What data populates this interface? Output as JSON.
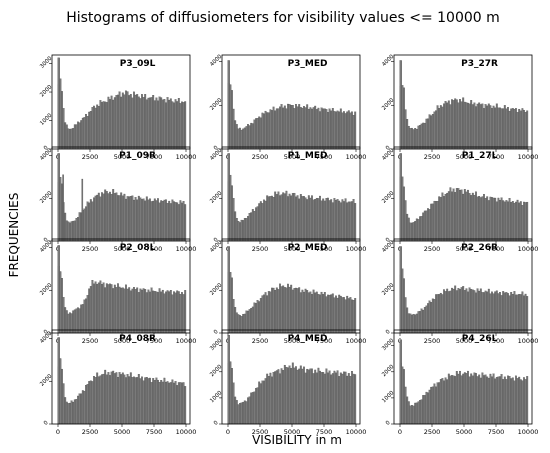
{
  "figure": {
    "title": "Histograms of diffusiometers for visibility values <= 10000 m",
    "xlabel": "VISIBILITY in m",
    "ylabel": "FREQUENCIES",
    "bar_color": "#7a7a7a",
    "edge_color": "#3c3c3c"
  },
  "chart_data": [
    {
      "type": "bar",
      "title": "P3_09L",
      "xlim": [
        0,
        10000
      ],
      "ylim": [
        0,
        3300
      ],
      "yticks": [
        0,
        1000,
        2000,
        3000
      ],
      "xticks": [
        0,
        2500,
        5000,
        7500,
        10000
      ],
      "x": [
        0,
        250,
        500,
        750,
        1000,
        1250,
        1500,
        1750,
        2000,
        2250,
        2500,
        2750,
        3000,
        3250,
        3500,
        3750,
        4000,
        4250,
        4500,
        4750,
        5000,
        5250,
        5500,
        5750,
        6000,
        6250,
        6500,
        6750,
        7000,
        7250,
        7500,
        7750,
        8000,
        8250,
        8500,
        8750,
        9000,
        9250,
        9500,
        9750,
        10000
      ],
      "values": [
        2100,
        2500,
        1050,
        720,
        700,
        780,
        900,
        1000,
        1080,
        1200,
        1320,
        1450,
        1520,
        1600,
        1650,
        1700,
        1750,
        1800,
        1850,
        1900,
        1950,
        1980,
        1950,
        1900,
        1900,
        1880,
        1850,
        1830,
        1820,
        1800,
        1790,
        1780,
        1760,
        1750,
        1730,
        1720,
        1700,
        1690,
        1680,
        1670,
        1650
      ],
      "peak": {
        "x": 60,
        "value": 3200
      }
    },
    {
      "type": "bar",
      "title": "P3_MED",
      "xlim": [
        0,
        10000
      ],
      "ylim": [
        0,
        4300
      ],
      "yticks": [
        0,
        2000,
        4000
      ],
      "xticks": [
        0,
        2500,
        5000,
        7500,
        10000
      ],
      "x": [
        0,
        250,
        500,
        750,
        1000,
        1250,
        1500,
        1750,
        2000,
        2250,
        2500,
        2750,
        3000,
        3250,
        3500,
        3750,
        4000,
        4250,
        4500,
        4750,
        5000,
        5250,
        5500,
        5750,
        6000,
        6250,
        6500,
        6750,
        7000,
        7250,
        7500,
        7750,
        8000,
        8250,
        8500,
        8750,
        9000,
        9250,
        9500,
        9750,
        10000
      ],
      "values": [
        2800,
        3000,
        1500,
        950,
        900,
        950,
        1050,
        1150,
        1250,
        1400,
        1500,
        1600,
        1700,
        1750,
        1800,
        1850,
        1900,
        1950,
        1950,
        2000,
        2000,
        1980,
        1950,
        1950,
        1930,
        1900,
        1900,
        1880,
        1850,
        1830,
        1820,
        1800,
        1780,
        1760,
        1750,
        1730,
        1710,
        1700,
        1680,
        1670,
        1650
      ],
      "peak": {
        "x": 60,
        "value": 4050
      }
    },
    {
      "type": "bar",
      "title": "P3_27R",
      "xlim": [
        0,
        10000
      ],
      "ylim": [
        0,
        4300
      ],
      "yticks": [
        0,
        2000,
        4000
      ],
      "xticks": [
        0,
        2500,
        5000,
        7500,
        10000
      ],
      "x": [
        0,
        250,
        500,
        750,
        1000,
        1250,
        1500,
        1750,
        2000,
        2250,
        2500,
        2750,
        3000,
        3250,
        3500,
        3750,
        4000,
        4250,
        4500,
        4750,
        5000,
        5250,
        5500,
        5750,
        6000,
        6250,
        6500,
        6750,
        7000,
        7250,
        7500,
        7750,
        8000,
        8250,
        8500,
        8750,
        9000,
        9250,
        9500,
        9750,
        10000
      ],
      "values": [
        2800,
        3000,
        1500,
        950,
        900,
        950,
        1050,
        1150,
        1300,
        1450,
        1600,
        1750,
        1900,
        2000,
        2080,
        2150,
        2200,
        2230,
        2250,
        2230,
        2200,
        2150,
        2100,
        2080,
        2050,
        2050,
        2000,
        2000,
        1980,
        1950,
        1950,
        1900,
        1900,
        1880,
        1850,
        1830,
        1800,
        1800,
        1780,
        1750,
        1750
      ],
      "peak": {
        "x": 60,
        "value": 4050
      }
    },
    {
      "type": "bar",
      "title": "P1_09R",
      "xlim": [
        0,
        10000
      ],
      "ylim": [
        0,
        4400
      ],
      "yticks": [
        0,
        2000,
        4000
      ],
      "xticks": [
        0,
        2500,
        5000,
        7500,
        10000
      ],
      "x": [
        0,
        250,
        500,
        750,
        1000,
        1250,
        1500,
        1750,
        2000,
        2250,
        2500,
        2750,
        3000,
        3250,
        3500,
        3750,
        4000,
        4250,
        4500,
        4750,
        5000,
        5250,
        5500,
        5750,
        6000,
        6250,
        6500,
        6750,
        7000,
        7250,
        7500,
        7750,
        8000,
        8250,
        8500,
        8750,
        9000,
        9250,
        9500,
        9750,
        10000
      ],
      "values": [
        2900,
        3000,
        1400,
        900,
        850,
        950,
        1100,
        1300,
        1500,
        1700,
        1850,
        2000,
        2100,
        2200,
        2250,
        2300,
        2300,
        2280,
        2250,
        2200,
        2150,
        2100,
        2080,
        2050,
        2030,
        2000,
        2000,
        1980,
        1950,
        1930,
        1920,
        1900,
        1900,
        1880,
        1860,
        1850,
        1830,
        1820,
        1800,
        1800,
        1780
      ],
      "peak": {
        "x": 60,
        "value": 4100
      },
      "spikes": [
        {
          "x": 400,
          "value": 3100
        },
        {
          "x": 1900,
          "value": 2900
        }
      ]
    },
    {
      "type": "bar",
      "title": "P1_MED",
      "xlim": [
        0,
        10000
      ],
      "ylim": [
        0,
        4400
      ],
      "yticks": [
        0,
        2000,
        4000
      ],
      "xticks": [
        0,
        2500,
        5000,
        7500,
        10000
      ],
      "x": [
        0,
        250,
        500,
        750,
        1000,
        1250,
        1500,
        1750,
        2000,
        2250,
        2500,
        2750,
        3000,
        3250,
        3500,
        3750,
        4000,
        4250,
        4500,
        4750,
        5000,
        5250,
        5500,
        5750,
        6000,
        6250,
        6500,
        6750,
        7000,
        7250,
        7500,
        7750,
        8000,
        8250,
        8500,
        8750,
        9000,
        9250,
        9500,
        9750,
        10000
      ],
      "values": [
        2900,
        3100,
        1500,
        950,
        900,
        1000,
        1150,
        1300,
        1450,
        1600,
        1750,
        1880,
        2000,
        2080,
        2150,
        2200,
        2220,
        2230,
        2220,
        2200,
        2180,
        2150,
        2100,
        2080,
        2060,
        2050,
        2030,
        2000,
        2000,
        1980,
        1960,
        1950,
        1930,
        1920,
        1900,
        1900,
        1880,
        1870,
        1860,
        1850,
        1830
      ],
      "peak": {
        "x": 60,
        "value": 4100
      }
    },
    {
      "type": "bar",
      "title": "P1_27L",
      "xlim": [
        0,
        10000
      ],
      "ylim": [
        0,
        4400
      ],
      "yticks": [
        0,
        2000,
        4000
      ],
      "xticks": [
        0,
        2500,
        5000,
        7500,
        10000
      ],
      "x": [
        0,
        250,
        500,
        750,
        1000,
        1250,
        1500,
        1750,
        2000,
        2250,
        2500,
        2750,
        3000,
        3250,
        3500,
        3750,
        4000,
        4250,
        4500,
        4750,
        5000,
        5250,
        5500,
        5750,
        6000,
        6250,
        6500,
        6750,
        7000,
        7250,
        7500,
        7750,
        8000,
        8250,
        8500,
        8750,
        9000,
        9250,
        9500,
        9750,
        10000
      ],
      "values": [
        2900,
        3100,
        1400,
        900,
        850,
        950,
        1100,
        1250,
        1400,
        1550,
        1700,
        1850,
        2000,
        2100,
        2200,
        2300,
        2380,
        2420,
        2400,
        2380,
        2350,
        2300,
        2250,
        2200,
        2150,
        2100,
        2080,
        2050,
        2020,
        2000,
        1980,
        1950,
        1920,
        1900,
        1880,
        1860,
        1840,
        1820,
        1800,
        1790,
        1780
      ],
      "peak": {
        "x": 60,
        "value": 4100
      }
    },
    {
      "type": "bar",
      "title": "P2_08L",
      "xlim": [
        0,
        10000
      ],
      "ylim": [
        0,
        4400
      ],
      "yticks": [
        0,
        2000,
        4000
      ],
      "xticks": [
        0,
        2500,
        5000,
        7500,
        10000
      ],
      "x": [
        0,
        250,
        500,
        750,
        1000,
        1250,
        1500,
        1750,
        2000,
        2250,
        2500,
        2750,
        3000,
        3250,
        3500,
        3750,
        4000,
        4250,
        4500,
        4750,
        5000,
        5250,
        5500,
        5750,
        6000,
        6250,
        6500,
        6750,
        7000,
        7250,
        7500,
        7750,
        8000,
        8250,
        8500,
        8750,
        9000,
        9250,
        9500,
        9750,
        10000
      ],
      "values": [
        2900,
        3000,
        1300,
        900,
        950,
        1050,
        1150,
        1250,
        1400,
        1700,
        2200,
        2350,
        2400,
        2350,
        2300,
        2280,
        2250,
        2230,
        2200,
        2180,
        2150,
        2120,
        2100,
        2080,
        2060,
        2050,
        2030,
        2010,
        2000,
        1990,
        1980,
        1970,
        1960,
        1950,
        1940,
        1930,
        1920,
        1910,
        1900,
        1890,
        1880
      ],
      "peak": {
        "x": 60,
        "value": 4100
      }
    },
    {
      "type": "bar",
      "title": "P2_MED",
      "xlim": [
        0,
        10000
      ],
      "ylim": [
        0,
        4400
      ],
      "yticks": [
        0,
        2000,
        4000
      ],
      "xticks": [
        0,
        2500,
        5000,
        7500,
        10000
      ],
      "x": [
        0,
        250,
        500,
        750,
        1000,
        1250,
        1500,
        1750,
        2000,
        2250,
        2500,
        2750,
        3000,
        3250,
        3500,
        3750,
        4000,
        4250,
        4500,
        4750,
        5000,
        5250,
        5500,
        5750,
        6000,
        6250,
        6500,
        6750,
        7000,
        7250,
        7500,
        7750,
        8000,
        8250,
        8500,
        8750,
        9000,
        9250,
        9500,
        9750,
        10000
      ],
      "values": [
        2700,
        2900,
        1300,
        850,
        800,
        900,
        1000,
        1150,
        1300,
        1450,
        1600,
        1750,
        1850,
        1950,
        2050,
        2100,
        2150,
        2200,
        2200,
        2180,
        2150,
        2100,
        2050,
        2000,
        1980,
        1950,
        1920,
        1900,
        1880,
        1850,
        1820,
        1800,
        1780,
        1750,
        1720,
        1700,
        1680,
        1650,
        1620,
        1600,
        1580
      ],
      "peak": {
        "x": 60,
        "value": 4050
      }
    },
    {
      "type": "bar",
      "title": "P2_26R",
      "xlim": [
        0,
        10000
      ],
      "ylim": [
        0,
        4400
      ],
      "yticks": [
        0,
        2000,
        4000
      ],
      "xticks": [
        0,
        2500,
        5000,
        7500,
        10000
      ],
      "x": [
        0,
        250,
        500,
        750,
        1000,
        1250,
        1500,
        1750,
        2000,
        2250,
        2500,
        2750,
        3000,
        3250,
        3500,
        3750,
        4000,
        4250,
        4500,
        4750,
        5000,
        5250,
        5500,
        5750,
        6000,
        6250,
        6500,
        6750,
        7000,
        7250,
        7500,
        7750,
        8000,
        8250,
        8500,
        8750,
        9000,
        9250,
        9500,
        9750,
        10000
      ],
      "values": [
        2800,
        2900,
        1300,
        850,
        850,
        900,
        1000,
        1100,
        1250,
        1400,
        1550,
        1700,
        1800,
        1900,
        1950,
        2000,
        2050,
        2080,
        2100,
        2100,
        2080,
        2050,
        2030,
        2000,
        2000,
        1980,
        1960,
        1950,
        1930,
        1920,
        1900,
        1890,
        1880,
        1870,
        1860,
        1850,
        1840,
        1830,
        1820,
        1810,
        1800
      ],
      "peak": {
        "x": 60,
        "value": 4050
      }
    },
    {
      "type": "bar",
      "title": "P4_08R",
      "xlim": [
        0,
        10000
      ],
      "ylim": [
        0,
        4400
      ],
      "yticks": [
        0,
        2000,
        4000
      ],
      "xticks": [
        0,
        2500,
        5000,
        7500,
        10000
      ],
      "x": [
        0,
        250,
        500,
        750,
        1000,
        1250,
        1500,
        1750,
        2000,
        2250,
        2500,
        2750,
        3000,
        3250,
        3500,
        3750,
        4000,
        4250,
        4500,
        4750,
        5000,
        5250,
        5500,
        5750,
        6000,
        6250,
        6500,
        6750,
        7000,
        7250,
        7500,
        7750,
        8000,
        8250,
        8500,
        8750,
        9000,
        9250,
        9500,
        9750,
        10000
      ],
      "values": [
        2800,
        3000,
        1400,
        950,
        1000,
        1100,
        1250,
        1400,
        1600,
        1800,
        2000,
        2150,
        2250,
        2300,
        2350,
        2380,
        2400,
        2400,
        2380,
        2350,
        2320,
        2300,
        2280,
        2250,
        2230,
        2200,
        2180,
        2150,
        2130,
        2100,
        2080,
        2060,
        2040,
        2020,
        2000,
        1980,
        1960,
        1940,
        1920,
        1900,
        1880
      ],
      "peak": {
        "x": 60,
        "value": 4050
      }
    },
    {
      "type": "bar",
      "title": "P4_MED",
      "xlim": [
        0,
        10000
      ],
      "ylim": [
        0,
        3600
      ],
      "yticks": [
        0,
        1000,
        2000,
        3000
      ],
      "xticks": [
        0,
        2500,
        5000,
        7500,
        10000
      ],
      "x": [
        0,
        250,
        500,
        750,
        1000,
        1250,
        1500,
        1750,
        2000,
        2250,
        2500,
        2750,
        3000,
        3250,
        3500,
        3750,
        4000,
        4250,
        4500,
        4750,
        5000,
        5250,
        5500,
        5750,
        6000,
        6250,
        6500,
        6750,
        7000,
        7250,
        7500,
        7750,
        8000,
        8250,
        8500,
        8750,
        9000,
        9250,
        9500,
        9750,
        10000
      ],
      "values": [
        2300,
        2500,
        1150,
        800,
        780,
        850,
        950,
        1100,
        1250,
        1400,
        1550,
        1680,
        1800,
        1880,
        1950,
        2000,
        2050,
        2100,
        2150,
        2250,
        2200,
        2180,
        2150,
        2130,
        2100,
        2080,
        2060,
        2050,
        2030,
        2020,
        2000,
        1990,
        1980,
        1970,
        1960,
        1950,
        1940,
        1930,
        1920,
        1910,
        1900
      ],
      "peak": {
        "x": 60,
        "value": 3400
      }
    },
    {
      "type": "bar",
      "title": "P4_26L",
      "xlim": [
        0,
        10000
      ],
      "ylim": [
        0,
        3600
      ],
      "yticks": [
        0,
        1000,
        2000,
        3000
      ],
      "xticks": [
        0,
        2500,
        5000,
        7500,
        10000
      ],
      "x": [
        0,
        250,
        500,
        750,
        1000,
        1250,
        1500,
        1750,
        2000,
        2250,
        2500,
        2750,
        3000,
        3250,
        3500,
        3750,
        4000,
        4250,
        4500,
        4750,
        5000,
        5250,
        5500,
        5750,
        6000,
        6250,
        6500,
        6750,
        7000,
        7250,
        7500,
        7750,
        8000,
        8250,
        8500,
        8750,
        9000,
        9250,
        9500,
        9750,
        10000
      ],
      "values": [
        2200,
        2400,
        1100,
        750,
        700,
        780,
        900,
        1000,
        1150,
        1300,
        1400,
        1500,
        1600,
        1680,
        1750,
        1800,
        1850,
        1900,
        1930,
        1950,
        1950,
        1930,
        1920,
        1900,
        1880,
        1870,
        1860,
        1850,
        1840,
        1830,
        1820,
        1810,
        1800,
        1790,
        1780,
        1770,
        1760,
        1750,
        1740,
        1730,
        1720
      ],
      "peak": {
        "x": 60,
        "value": 3200
      }
    }
  ]
}
